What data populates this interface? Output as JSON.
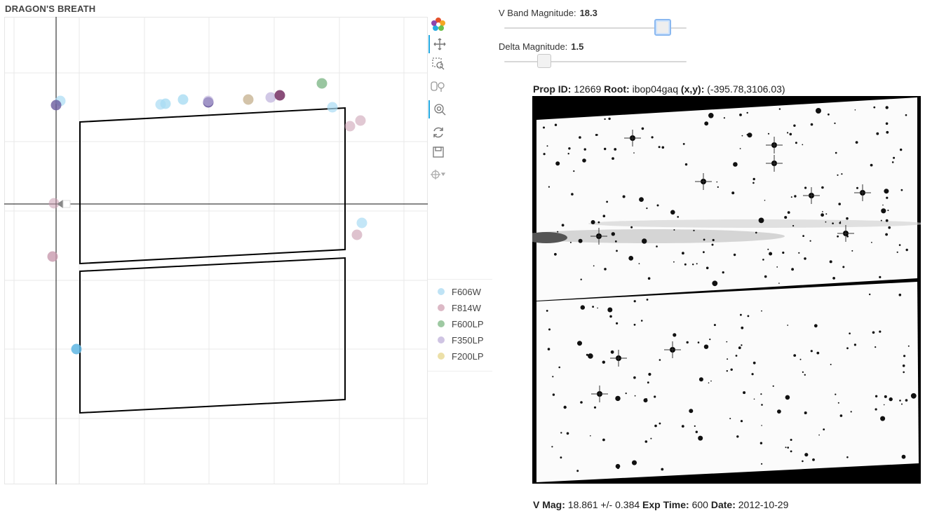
{
  "app": {
    "title": "DRAGON'S BREATH"
  },
  "toolbar": {
    "tools": [
      {
        "name": "bokeh-logo-icon",
        "active": false
      },
      {
        "name": "pan-tool-icon",
        "active": true
      },
      {
        "name": "box-zoom-tool-icon",
        "active": false
      },
      {
        "name": "tap-tool-icon",
        "active": false
      },
      {
        "name": "wheel-zoom-tool-icon",
        "active": true
      },
      {
        "name": "reset-tool-icon",
        "active": false
      },
      {
        "name": "save-tool-icon",
        "active": false
      },
      {
        "name": "crosshair-tool-icon",
        "active": false
      }
    ]
  },
  "legend": {
    "items": [
      {
        "label": "F606W",
        "color": "#bfe3f5"
      },
      {
        "label": "F814W",
        "color": "#dcb9c6"
      },
      {
        "label": "F600LP",
        "color": "#9ec9a2"
      },
      {
        "label": "F350LP",
        "color": "#cfc4e3"
      },
      {
        "label": "F200LP",
        "color": "#ece0a8"
      }
    ]
  },
  "sliders": {
    "vband": {
      "label": "V Band Magnitude:",
      "value": "18.3",
      "fraction": 0.87
    },
    "delta": {
      "label": "Delta Magnitude:",
      "value": "1.5",
      "fraction": 0.22
    }
  },
  "image_header": {
    "prop_label": "Prop ID:",
    "prop_value": "12669",
    "root_label": "Root:",
    "root_value": "ibop04gaq",
    "xy_label": "(x,y):",
    "xy_value": "(-395.78,3106.03)"
  },
  "image_footer": {
    "vmag_label": "V Mag:",
    "vmag_value": "18.861 +/- 0.384",
    "exp_label": "Exp Time:",
    "exp_value": "600",
    "date_label": "Date:",
    "date_value": "2012-10-29"
  },
  "plot": {
    "colors": {
      "F606W": "#a9dcf3",
      "F606W_strong": "#5fb6e3",
      "F814W": "#c89aae",
      "F600LP": "#7fb888",
      "F350LP": "#bdb0dc",
      "F350LP_dark": "#6a5b9e",
      "F814W_dark": "#7c3a6a",
      "F200LP": "#cbb89a"
    }
  }
}
